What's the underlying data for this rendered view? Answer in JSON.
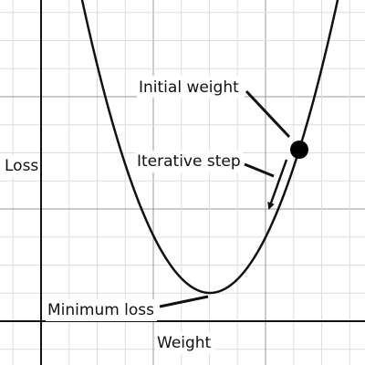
{
  "labels": {
    "initial": "Initial weight",
    "step": "Iterative step",
    "minimum": "Minimum loss"
  },
  "axes": {
    "y": "Loss",
    "x": "Weight"
  }
}
